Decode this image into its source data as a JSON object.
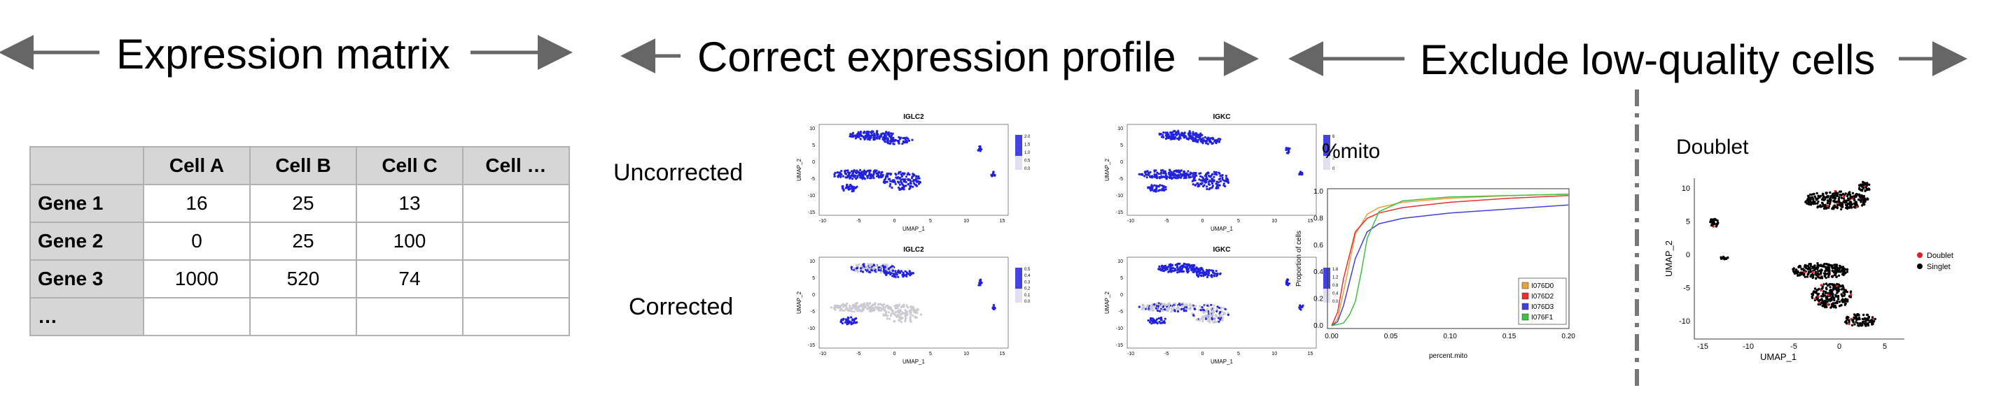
{
  "sections": {
    "expression": "Expression matrix",
    "correct": "Correct expression profile",
    "exclude": "Exclude low-quality cells"
  },
  "matrix": {
    "headers": [
      "",
      "Cell A",
      "Cell B",
      "Cell C",
      "Cell …"
    ],
    "rows": [
      {
        "gene": "Gene 1",
        "values": [
          "16",
          "25",
          "13",
          ""
        ]
      },
      {
        "gene": "Gene 2",
        "values": [
          "0",
          "25",
          "100",
          ""
        ]
      },
      {
        "gene": "Gene 3",
        "values": [
          "1000",
          "520",
          "74",
          ""
        ]
      },
      {
        "gene": "…",
        "values": [
          "",
          "",
          "",
          ""
        ]
      }
    ]
  },
  "umap": {
    "row_uncorrected": "Uncorrected",
    "row_corrected": "Corrected",
    "panel_titles": [
      "IGLC2",
      "IGKC",
      "IGLC2",
      "IGKC"
    ],
    "xlabel": "UMAP_1",
    "ylabel": "UMAP_2",
    "xticks": [
      "-10",
      "-5",
      "0",
      "5",
      "10",
      "15"
    ],
    "yticks": [
      "10",
      "5",
      "0",
      "-5",
      "-10",
      "-15"
    ],
    "scales": [
      [
        "2.0",
        "1.5",
        "1.0",
        "0.5",
        "0.0"
      ],
      [
        "6",
        "4",
        "2",
        "0"
      ],
      [
        "0.5",
        "0.4",
        "0.3",
        "0.2",
        "0.1",
        "0.0"
      ],
      [
        "1.6",
        "1.2",
        "0.8",
        "0.4",
        "0.0"
      ]
    ],
    "high_color": "#2222dd",
    "low_color": "#cccccc"
  },
  "chart_data": [
    {
      "type": "line",
      "title": "%mito",
      "xlabel": "percent.mito",
      "ylabel": "Proportion of cells",
      "xlim": [
        0.0,
        0.2
      ],
      "ylim": [
        0.0,
        1.0
      ],
      "xticks": [
        "0.00",
        "0.05",
        "0.10",
        "0.15",
        "0.20"
      ],
      "yticks": [
        "0.0",
        "0.2",
        "0.4",
        "0.6",
        "0.8",
        "1.0"
      ],
      "legend_position": "bottom-right",
      "series": [
        {
          "name": "I076D0",
          "color": "#e8a040",
          "x": [
            0,
            0.005,
            0.01,
            0.02,
            0.03,
            0.04,
            0.06,
            0.1,
            0.15,
            0.2
          ],
          "y": [
            0,
            0.05,
            0.25,
            0.68,
            0.83,
            0.88,
            0.92,
            0.95,
            0.97,
            0.98
          ]
        },
        {
          "name": "I076D2",
          "color": "#e83030",
          "x": [
            0,
            0.005,
            0.01,
            0.02,
            0.03,
            0.04,
            0.06,
            0.1,
            0.15,
            0.2
          ],
          "y": [
            0,
            0.1,
            0.35,
            0.7,
            0.8,
            0.84,
            0.88,
            0.92,
            0.95,
            0.97
          ]
        },
        {
          "name": "I076D3",
          "color": "#4040e0",
          "x": [
            0,
            0.005,
            0.01,
            0.02,
            0.03,
            0.04,
            0.06,
            0.1,
            0.15,
            0.2
          ],
          "y": [
            0,
            0.03,
            0.15,
            0.5,
            0.7,
            0.76,
            0.8,
            0.84,
            0.87,
            0.9
          ]
        },
        {
          "name": "I076F1",
          "color": "#40c040",
          "x": [
            0,
            0.01,
            0.015,
            0.02,
            0.025,
            0.03,
            0.04,
            0.06,
            0.1,
            0.15,
            0.2
          ],
          "y": [
            0,
            0.02,
            0.08,
            0.18,
            0.4,
            0.65,
            0.85,
            0.93,
            0.96,
            0.97,
            0.98
          ]
        }
      ]
    },
    {
      "type": "scatter",
      "title": "Doublet",
      "xlabel": "UMAP_1",
      "ylabel": "UMAP_2",
      "xticks": [
        "-15",
        "-10",
        "-5",
        "0",
        "5"
      ],
      "yticks": [
        "10",
        "5",
        "0",
        "-5",
        "-10"
      ],
      "legend_position": "right",
      "series": [
        {
          "name": "Doublet",
          "color": "#e02020"
        },
        {
          "name": "Singlet",
          "color": "#000000"
        }
      ]
    }
  ]
}
